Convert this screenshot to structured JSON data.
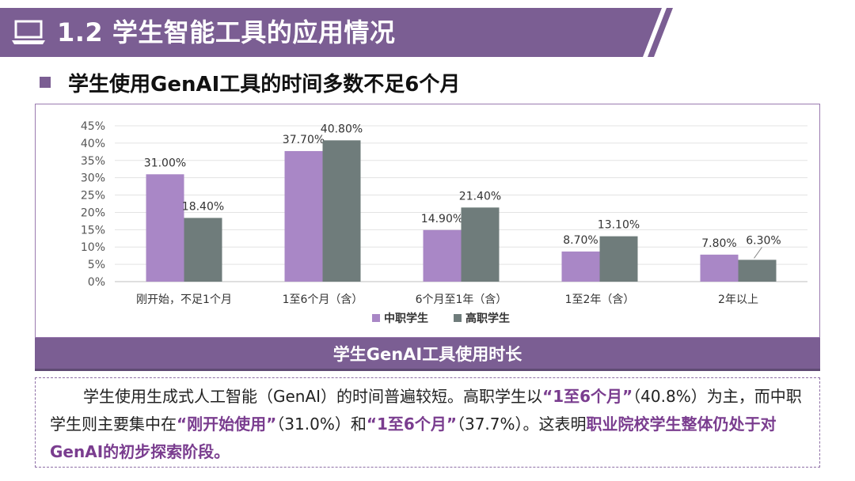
{
  "header": {
    "title": "1.2 学生智能工具的应用情况"
  },
  "subtitle": {
    "text": "学生使用GenAI工具的时间多数不足6个月"
  },
  "colors": {
    "accent": "#7b5e93",
    "series1": "#a987c6",
    "series2": "#6f7c7b",
    "highlight": "#7a3d8f"
  },
  "chart_data": {
    "type": "bar",
    "title": "",
    "categories": [
      "刚开始，不足1个月",
      "1至6个月（含）",
      "6个月至1年（含）",
      "1至2年（含）",
      "2年以上"
    ],
    "series": [
      {
        "name": "中职学生",
        "values": [
          31.0,
          37.7,
          14.9,
          8.7,
          7.8
        ],
        "labels": [
          "31.00%",
          "37.70%",
          "14.90%",
          "8.70%",
          "7.80%"
        ]
      },
      {
        "name": "高职学生",
        "values": [
          18.4,
          40.8,
          21.4,
          13.1,
          6.3
        ],
        "labels": [
          "18.40%",
          "40.80%",
          "21.40%",
          "13.10%",
          "6.30%"
        ]
      }
    ],
    "y_ticks": [
      "0%",
      "5%",
      "10%",
      "15%",
      "20%",
      "25%",
      "30%",
      "35%",
      "40%",
      "45%"
    ],
    "ylim": [
      0,
      45
    ],
    "xlabel": "",
    "ylabel": "",
    "legend_position": "bottom"
  },
  "caption": {
    "text": "学生GenAI工具使用时长"
  },
  "description": {
    "p1_a": "学生使用生成式人工智能（GenAI）的时间普遍较短。高职学生以",
    "p1_hl1": "“1至6个月”",
    "p1_b": "（40.8%）为主，而中职学生则主要集中在",
    "p1_hl2": "“刚开始使用”",
    "p1_c": "（31.0%）和",
    "p1_hl3": "“1至6个月”",
    "p1_d": "（37.7%）。这表明",
    "p1_hl4": "职业院校学生整体仍处于对GenAI的初步探索阶段。"
  }
}
